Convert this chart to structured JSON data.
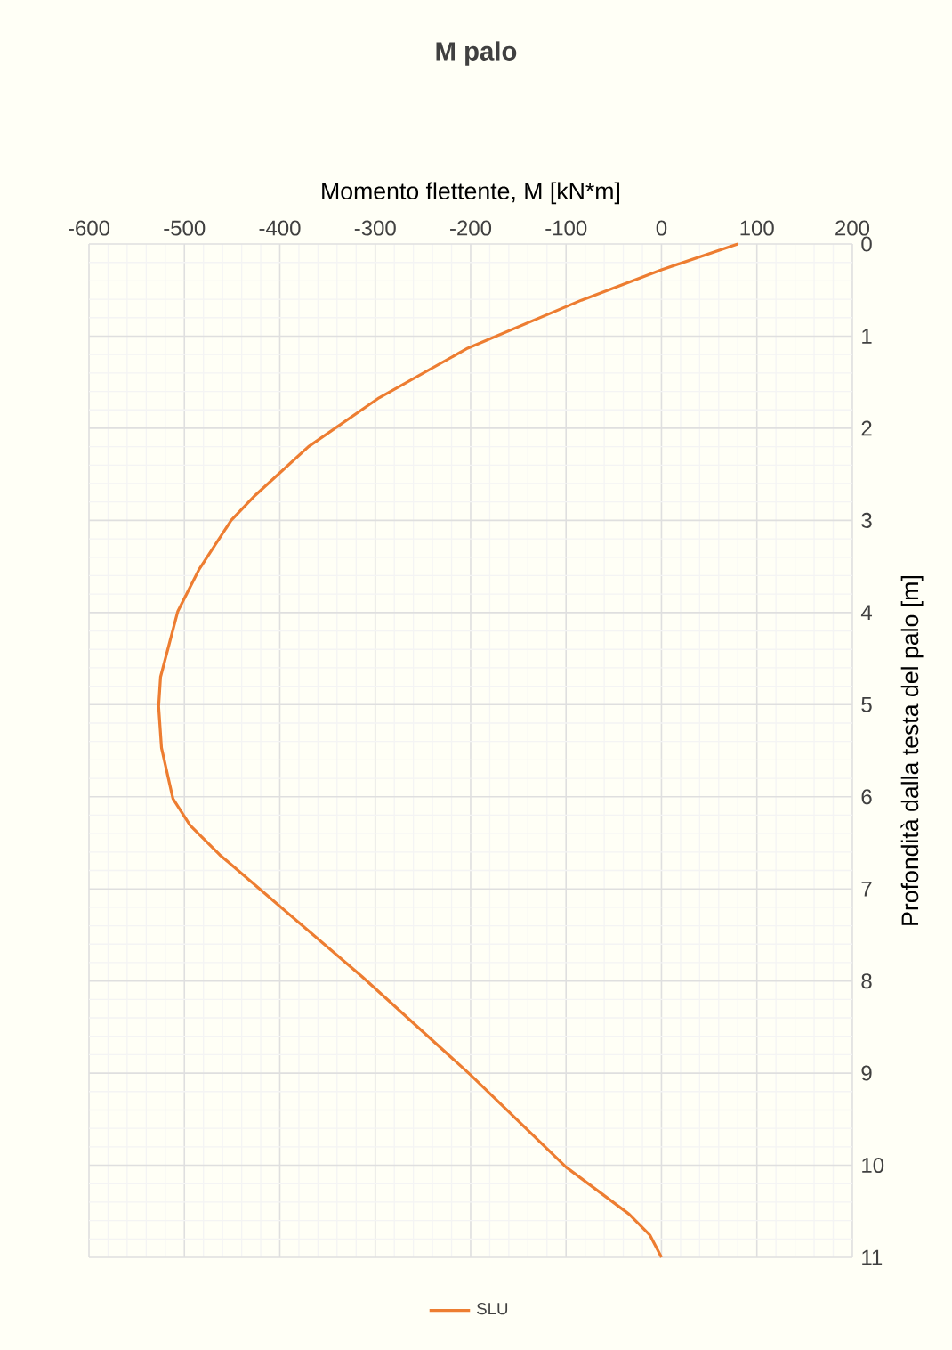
{
  "chart_data": {
    "type": "line",
    "title": "M palo",
    "xlabel": "Momento flettente, M [kN*m]",
    "ylabel": "Profondità dalla testa del palo [m]",
    "series": [
      {
        "name": "SLU",
        "color": "#ed7d31",
        "x": [
          80,
          0,
          -84,
          -203,
          -296,
          -370,
          -426,
          -451,
          -485,
          -507,
          -525,
          -527,
          -524,
          -512,
          -494,
          -463,
          -401,
          -314,
          -200,
          -100,
          -34,
          -12,
          0
        ],
        "values": [
          0,
          0.28,
          0.61,
          1.13,
          1.67,
          2.2,
          2.73,
          3.0,
          3.54,
          3.99,
          4.7,
          5.02,
          5.47,
          6.02,
          6.31,
          6.63,
          7.18,
          7.95,
          9.02,
          10.02,
          10.53,
          10.76,
          11
        ]
      }
    ],
    "xlim": [
      -600,
      200
    ],
    "xticks": [
      -600,
      -500,
      -400,
      -300,
      -200,
      -100,
      0,
      100,
      200
    ],
    "ylim": [
      11,
      0
    ],
    "yticks": [
      0,
      1,
      2,
      3,
      4,
      5,
      6,
      7,
      8,
      9,
      10,
      11
    ],
    "grid": true,
    "legend": "bottom",
    "marker": "none",
    "line_style": "solid"
  }
}
